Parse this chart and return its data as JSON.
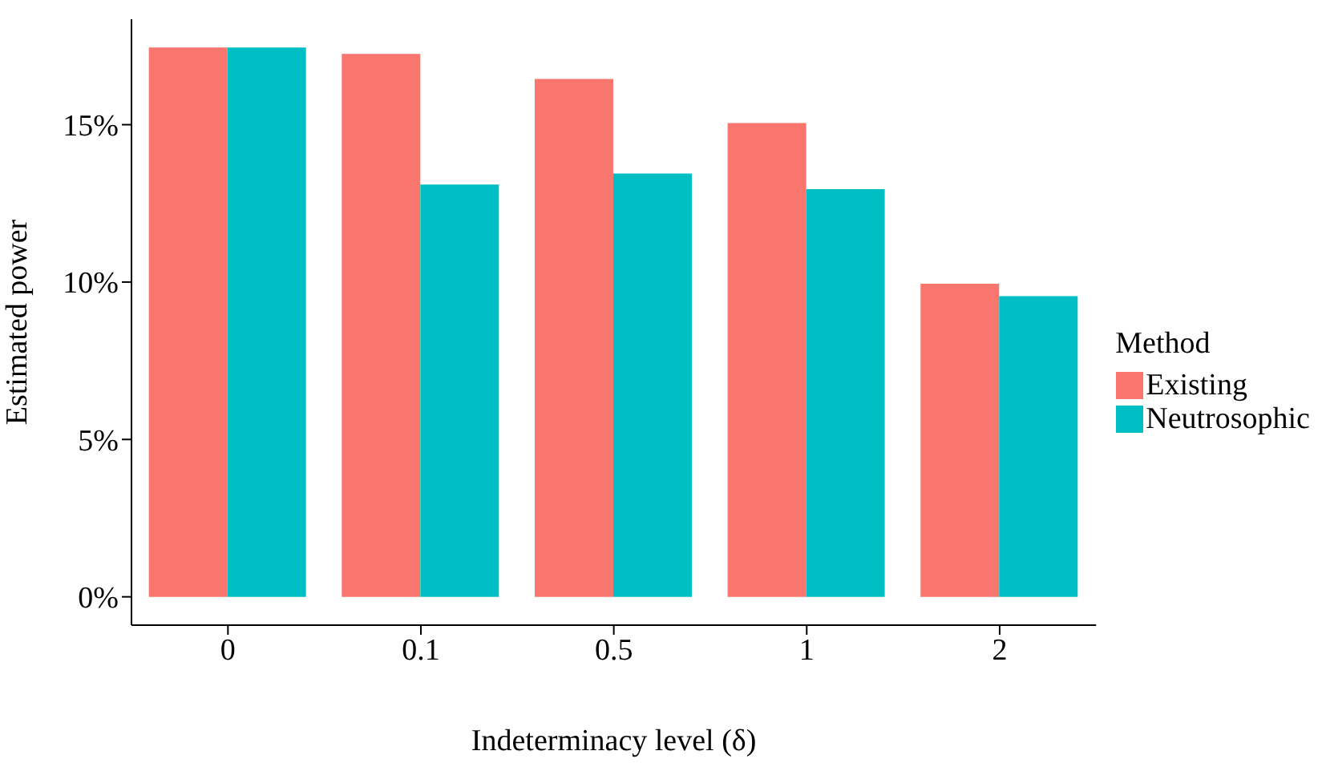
{
  "chart_data": {
    "type": "bar",
    "xlabel": "Indeterminacy level (δ)",
    "ylabel": "Estimated power",
    "legend_title": "Method",
    "categories": [
      "0",
      "0.1",
      "0.5",
      "1",
      "2"
    ],
    "series": [
      {
        "name": "Existing",
        "color": "#f8766d",
        "values": [
          17.45,
          17.25,
          16.45,
          15.05,
          9.95
        ]
      },
      {
        "name": "Neutrosophic",
        "color": "#00bfc4",
        "values": [
          17.45,
          13.1,
          13.45,
          12.95,
          9.55
        ]
      }
    ],
    "ylim": [
      -0.9,
      18.35
    ],
    "yticks": [
      {
        "value": 0,
        "label": "0%"
      },
      {
        "value": 5,
        "label": "5%"
      },
      {
        "value": 10,
        "label": "10%"
      },
      {
        "value": 15,
        "label": "15%"
      }
    ],
    "grid": false,
    "legend": "right"
  }
}
